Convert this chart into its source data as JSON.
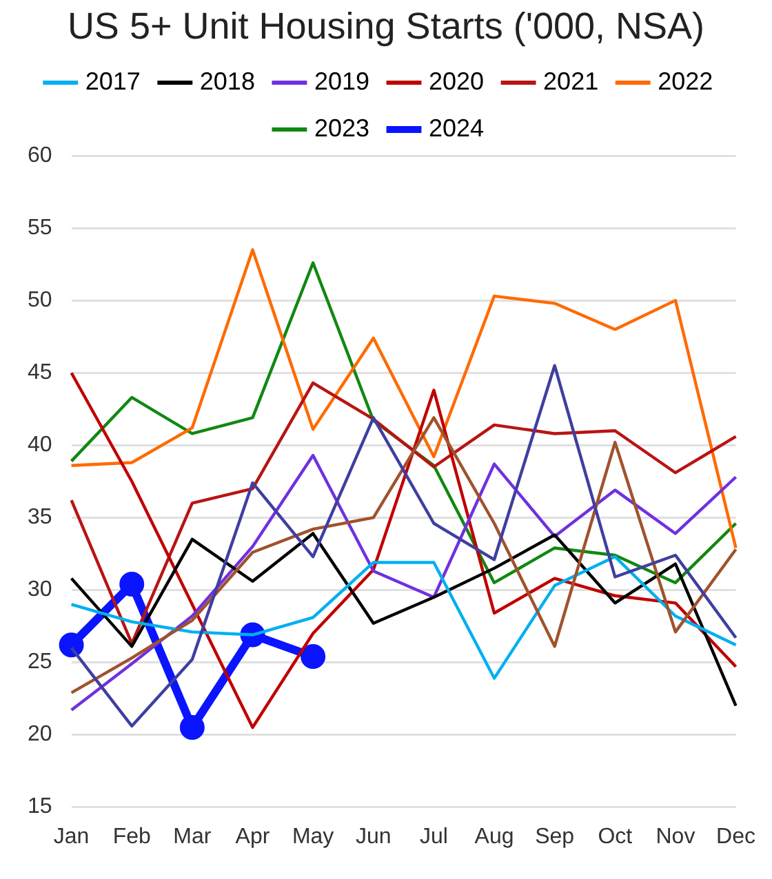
{
  "chart_data": {
    "type": "line",
    "title": "US 5+ Unit Housing Starts ('000, NSA)",
    "categories": [
      "Jan",
      "Feb",
      "Mar",
      "Apr",
      "May",
      "Jun",
      "Jul",
      "Aug",
      "Sep",
      "Oct",
      "Nov",
      "Dec"
    ],
    "ylim": [
      15,
      60
    ],
    "yticks": [
      15,
      20,
      25,
      30,
      35,
      40,
      45,
      50,
      55,
      60
    ],
    "grid": "y",
    "legend": "top",
    "marker": "none",
    "line_style": "solid",
    "series": [
      {
        "color": "#3f3fa0",
        "values": [
          26.0,
          20.6,
          25.2,
          37.4,
          32.3,
          41.9,
          34.6,
          32.1,
          45.5,
          30.9,
          32.4,
          26.7
        ]
      },
      {
        "color": "#a0522d",
        "values": [
          22.9,
          25.3,
          27.9,
          32.6,
          34.2,
          35.0,
          41.9,
          34.6,
          26.1,
          40.2,
          27.1,
          32.8
        ]
      },
      {
        "name": "2017",
        "color": "#00b0f0",
        "values": [
          29.0,
          27.8,
          27.1,
          26.9,
          28.1,
          31.9,
          31.9,
          23.9,
          30.3,
          32.3,
          28.2,
          26.2
        ]
      },
      {
        "name": "2018",
        "color": "#000000",
        "values": [
          30.8,
          26.1,
          33.5,
          30.6,
          33.9,
          27.7,
          29.5,
          31.5,
          33.8,
          29.1,
          31.8,
          22.0
        ]
      },
      {
        "name": "2019",
        "color": "#7030e0",
        "values": [
          21.7,
          24.9,
          28.2,
          33.0,
          39.3,
          31.3,
          29.5,
          38.7,
          33.7,
          36.9,
          33.9,
          37.8
        ]
      },
      {
        "name": "2020",
        "color": "#c00000",
        "values": [
          45.0,
          37.5,
          29.0,
          20.5,
          27.0,
          31.4,
          43.8,
          28.4,
          30.8,
          29.6,
          29.1,
          24.7
        ]
      },
      {
        "name": "2021",
        "color": "#b81414",
        "values": [
          36.2,
          26.3,
          36.0,
          37.0,
          44.3,
          41.8,
          38.5,
          41.4,
          40.8,
          41.0,
          38.1,
          40.6
        ]
      },
      {
        "name": "2022",
        "color": "#ff6a00",
        "values": [
          38.6,
          38.8,
          41.2,
          53.5,
          41.1,
          47.4,
          39.2,
          50.3,
          49.8,
          48.0,
          50.0,
          32.9
        ]
      },
      {
        "name": "2023",
        "color": "#118811",
        "values": [
          38.9,
          43.3,
          40.8,
          41.9,
          52.6,
          41.7,
          38.6,
          30.5,
          32.9,
          32.4,
          30.5,
          34.6
        ]
      },
      {
        "name": "2024",
        "color": "#0a14ff",
        "marker": "circle",
        "values": [
          26.2,
          30.4,
          20.5,
          26.9,
          25.4,
          null,
          null,
          null,
          null,
          null,
          null,
          null
        ]
      }
    ]
  }
}
